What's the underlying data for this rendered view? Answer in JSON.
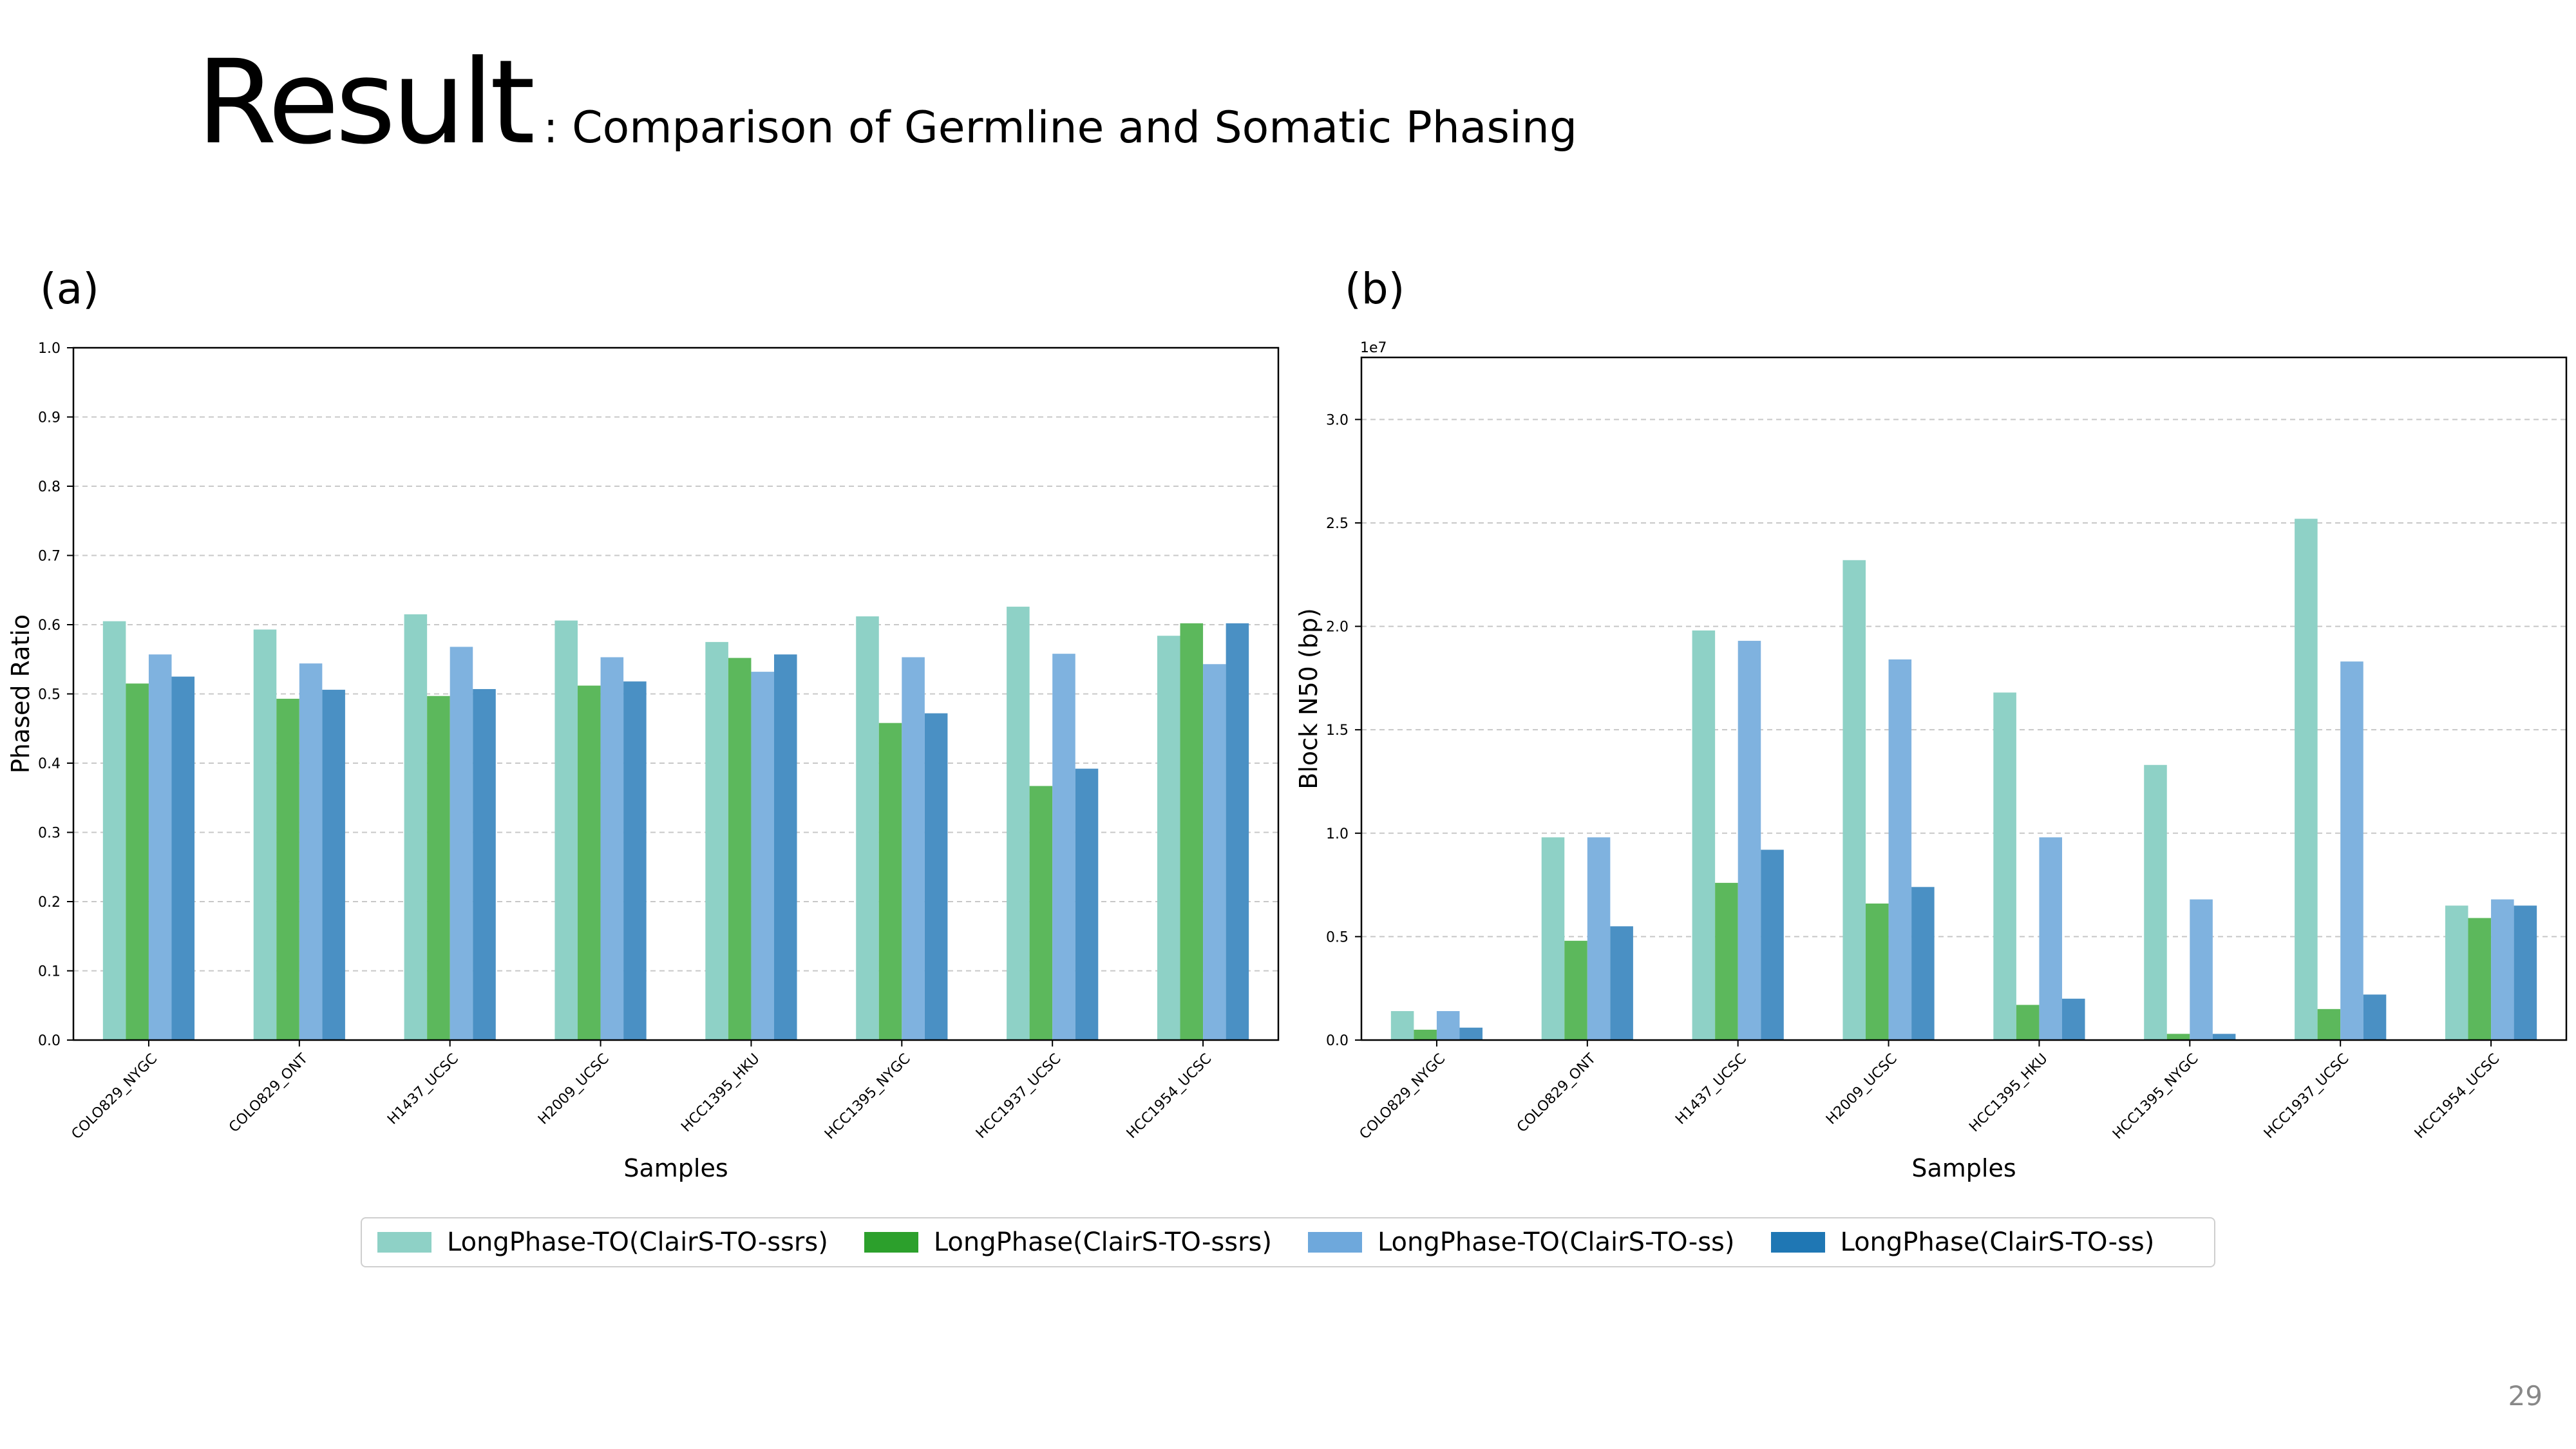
{
  "slide": {
    "title": "Result",
    "subtitle": ": Comparison of Germline and Somatic Phasing",
    "page_number": "29"
  },
  "panels": {
    "a_label": "(a)",
    "b_label": "(b)"
  },
  "legend": [
    {
      "label": "LongPhase-TO(ClairS-TO-ssrs)",
      "color": "#8ed1c6"
    },
    {
      "label": "LongPhase(ClairS-TO-ssrs)",
      "color": "#2ca02c"
    },
    {
      "label": "LongPhase-TO(ClairS-TO-ss)",
      "color": "#6ea8dc"
    },
    {
      "label": "LongPhase(ClairS-TO-ss)",
      "color": "#1f77b4"
    }
  ],
  "chart_data": [
    {
      "type": "bar",
      "panel": "(a)",
      "xlabel": "Samples",
      "ylabel": "Phased Ratio",
      "ylim": [
        0,
        1.0
      ],
      "yticks": [
        "0.0",
        "0.1",
        "0.2",
        "0.3",
        "0.4",
        "0.5",
        "0.6",
        "0.7",
        "0.8",
        "0.9",
        "1.0"
      ],
      "grid": true,
      "categories": [
        "COLO829_NYGC",
        "COLO829_ONT",
        "H1437_UCSC",
        "H2009_UCSC",
        "HCC1395_HKU",
        "HCC1395_NYGC",
        "HCC1937_UCSC",
        "HCC1954_UCSC"
      ],
      "series": [
        {
          "name": "LongPhase-TO(ClairS-TO-ssrs)",
          "values": [
            0.605,
            0.593,
            0.615,
            0.606,
            0.575,
            0.612,
            0.626,
            0.584
          ]
        },
        {
          "name": "LongPhase(ClairS-TO-ssrs)",
          "values": [
            0.515,
            0.493,
            0.497,
            0.512,
            0.552,
            0.458,
            0.367,
            0.602
          ]
        },
        {
          "name": "LongPhase-TO(ClairS-TO-ss)",
          "values": [
            0.557,
            0.544,
            0.568,
            0.553,
            0.532,
            0.553,
            0.558,
            0.543
          ]
        },
        {
          "name": "LongPhase(ClairS-TO-ss)",
          "values": [
            0.525,
            0.506,
            0.507,
            0.518,
            0.557,
            0.472,
            0.392,
            0.602
          ]
        }
      ]
    },
    {
      "type": "bar",
      "panel": "(b)",
      "xlabel": "Samples",
      "ylabel": "Block N50 (bp)",
      "y_scale_label": "1e7",
      "ylim": [
        0,
        3.3
      ],
      "yticks": [
        "0.0",
        "0.5",
        "1.0",
        "1.5",
        "2.0",
        "2.5",
        "3.0"
      ],
      "grid": true,
      "categories": [
        "COLO829_NYGC",
        "COLO829_ONT",
        "H1437_UCSC",
        "H2009_UCSC",
        "HCC1395_HKU",
        "HCC1395_NYGC",
        "HCC1937_UCSC",
        "HCC1954_UCSC"
      ],
      "series": [
        {
          "name": "LongPhase-TO(ClairS-TO-ssrs)",
          "values": [
            0.14,
            0.98,
            1.98,
            2.32,
            1.68,
            1.33,
            2.52,
            0.65
          ]
        },
        {
          "name": "LongPhase(ClairS-TO-ssrs)",
          "values": [
            0.05,
            0.48,
            0.76,
            0.66,
            0.17,
            0.03,
            0.15,
            0.59
          ]
        },
        {
          "name": "LongPhase-TO(ClairS-TO-ss)",
          "values": [
            0.14,
            0.98,
            1.93,
            1.84,
            0.98,
            0.68,
            1.83,
            0.68
          ]
        },
        {
          "name": "LongPhase(ClairS-TO-ss)",
          "values": [
            0.06,
            0.55,
            0.92,
            0.74,
            0.2,
            0.03,
            0.22,
            0.65
          ]
        }
      ]
    }
  ]
}
